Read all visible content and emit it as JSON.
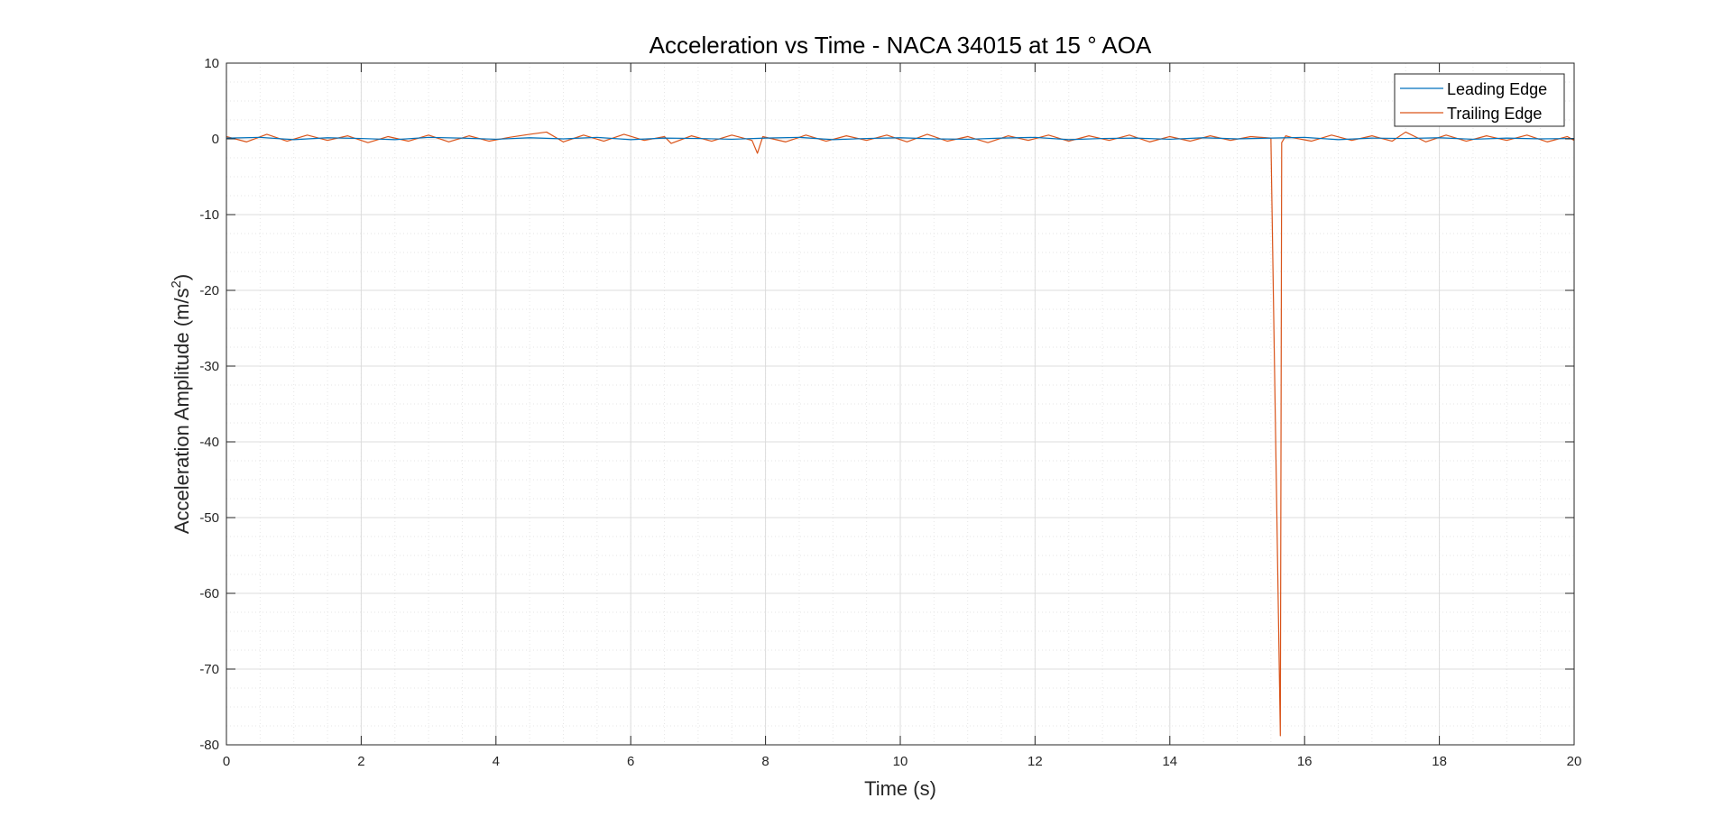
{
  "chart_data": {
    "type": "line",
    "title": "Acceleration vs Time - NACA 34015 at 15 ° AOA",
    "xlabel": "Time (s)",
    "ylabel_main": "Acceleration Amplitude (m/s",
    "ylabel_sup": "2",
    "ylabel_close": ")",
    "xlim": [
      0,
      20
    ],
    "ylim": [
      -80,
      10
    ],
    "xticks": [
      0,
      2,
      4,
      6,
      8,
      10,
      12,
      14,
      16,
      18,
      20
    ],
    "xtick_labels": [
      "0",
      "2",
      "4",
      "6",
      "8",
      "10",
      "12",
      "14",
      "16",
      "18",
      "20"
    ],
    "yticks": [
      10,
      0,
      -10,
      -20,
      -30,
      -40,
      -50,
      -60,
      -70,
      -80
    ],
    "ytick_labels": [
      "10",
      "0",
      "-10",
      "-20",
      "-30",
      "-40",
      "-50",
      "-60",
      "-70",
      "-80"
    ],
    "grid": true,
    "minor_grid": true,
    "legend_position": "top-right",
    "series": [
      {
        "name": "Leading Edge",
        "color": "#0072BD",
        "x": [
          0,
          0.5,
          1,
          1.5,
          2,
          2.5,
          3,
          3.5,
          4,
          4.5,
          5,
          5.5,
          6,
          6.5,
          7,
          7.5,
          8,
          8.5,
          9,
          9.5,
          10,
          10.5,
          11,
          11.5,
          12,
          12.5,
          13,
          13.5,
          14,
          14.5,
          15,
          15.5,
          16,
          16.5,
          17,
          17.5,
          18,
          18.5,
          19,
          19.5,
          20
        ],
        "y": [
          0.1,
          0.2,
          -0.1,
          0.15,
          0.05,
          -0.1,
          0.2,
          0.1,
          -0.05,
          0.15,
          0.0,
          0.2,
          -0.1,
          0.1,
          0.05,
          -0.05,
          0.1,
          0.2,
          -0.1,
          0.05,
          0.15,
          0.0,
          -0.05,
          0.1,
          0.2,
          -0.1,
          0.05,
          0.1,
          -0.05,
          0.15,
          0.0,
          0.1,
          0.2,
          -0.1,
          0.1,
          0.05,
          0.15,
          -0.05,
          0.1,
          0.0,
          0.05
        ]
      },
      {
        "name": "Trailing Edge",
        "color": "#D95319",
        "x": [
          0,
          0.3,
          0.6,
          0.9,
          1.2,
          1.5,
          1.8,
          2.1,
          2.4,
          2.7,
          3.0,
          3.3,
          3.6,
          3.9,
          4.2,
          4.5,
          4.75,
          5.0,
          5.3,
          5.6,
          5.9,
          6.2,
          6.5,
          6.6,
          6.9,
          7.2,
          7.5,
          7.8,
          7.88,
          7.96,
          8.3,
          8.6,
          8.9,
          9.2,
          9.5,
          9.8,
          10.1,
          10.4,
          10.7,
          11.0,
          11.3,
          11.6,
          11.9,
          12.2,
          12.5,
          12.8,
          13.1,
          13.4,
          13.7,
          14.0,
          14.3,
          14.6,
          14.9,
          15.2,
          15.5,
          15.64,
          15.66,
          15.72,
          15.8,
          16.1,
          16.4,
          16.7,
          17.0,
          17.3,
          17.5,
          17.8,
          18.1,
          18.4,
          18.7,
          19.0,
          19.3,
          19.6,
          19.9,
          20.0
        ],
        "y": [
          0.3,
          -0.4,
          0.6,
          -0.3,
          0.5,
          -0.2,
          0.4,
          -0.5,
          0.3,
          -0.3,
          0.5,
          -0.4,
          0.4,
          -0.3,
          0.2,
          0.6,
          0.9,
          -0.4,
          0.5,
          -0.3,
          0.6,
          -0.2,
          0.3,
          -0.6,
          0.4,
          -0.3,
          0.5,
          -0.2,
          -1.9,
          0.3,
          -0.4,
          0.5,
          -0.3,
          0.4,
          -0.2,
          0.5,
          -0.4,
          0.6,
          -0.3,
          0.3,
          -0.5,
          0.4,
          -0.2,
          0.5,
          -0.3,
          0.4,
          -0.2,
          0.5,
          -0.4,
          0.3,
          -0.3,
          0.4,
          -0.2,
          0.3,
          0.1,
          -78.8,
          -0.5,
          0.4,
          0.2,
          -0.3,
          0.5,
          -0.2,
          0.4,
          -0.3,
          0.9,
          -0.4,
          0.5,
          -0.3,
          0.4,
          -0.2,
          0.5,
          -0.4,
          0.3,
          -0.2
        ]
      }
    ]
  }
}
